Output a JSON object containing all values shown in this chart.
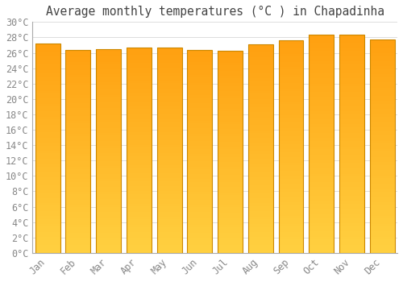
{
  "title": "Average monthly temperatures (°C ) in Chapadinha",
  "months": [
    "Jan",
    "Feb",
    "Mar",
    "Apr",
    "May",
    "Jun",
    "Jul",
    "Aug",
    "Sep",
    "Oct",
    "Nov",
    "Dec"
  ],
  "values": [
    27.2,
    26.4,
    26.5,
    26.7,
    26.7,
    26.4,
    26.3,
    27.1,
    27.6,
    28.4,
    28.4,
    27.7
  ],
  "bar_color_bottom": "#FFD040",
  "bar_color_top": "#FFA010",
  "bar_edge_color": "#CC8800",
  "ylim": [
    0,
    30
  ],
  "ytick_step": 2,
  "background_color": "#ffffff",
  "plot_bg_color": "#ffffff",
  "grid_color": "#dddddd",
  "title_fontsize": 10.5,
  "tick_fontsize": 8.5,
  "font_family": "monospace",
  "bar_width": 0.82
}
